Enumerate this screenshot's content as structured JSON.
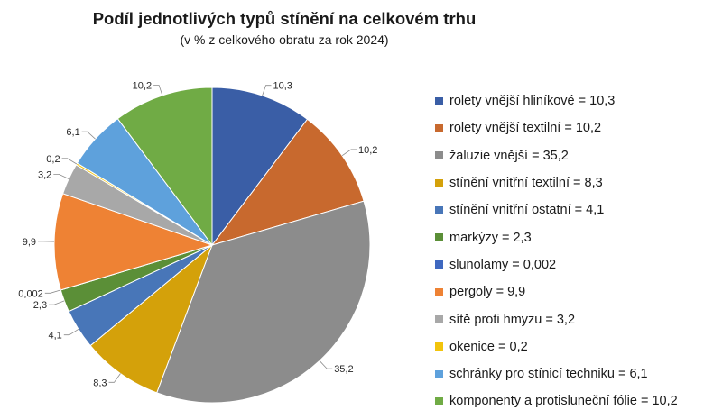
{
  "chart_data": {
    "type": "pie",
    "title": "Podíl jednotlivých typů stínění na celkovém trhu",
    "subtitle": "(v % z celkového obratu za rok 2024)",
    "legend_position": "right",
    "slices": [
      {
        "name": "rolety vnější hliníkové",
        "value": 10.3,
        "label": "10,3",
        "legend": "rolety vnější hliníkové = 10,3",
        "color": "#3a5ea6"
      },
      {
        "name": "rolety vnější textilní",
        "value": 10.2,
        "label": "10,2",
        "legend": "rolety vnější textilní = 10,2",
        "color": "#c8692e"
      },
      {
        "name": "žaluzie vnější",
        "value": 35.2,
        "label": "35,2",
        "legend": "žaluzie vnější = 35,2",
        "color": "#8c8c8c"
      },
      {
        "name": "stínění vnitřní textilní",
        "value": 8.3,
        "label": "8,3",
        "legend": "stínění vnitřní textilní = 8,3",
        "color": "#d4a10a"
      },
      {
        "name": "stínění vnitřní ostatní",
        "value": 4.1,
        "label": "4,1",
        "legend": "stínění vnitřní ostatní = 4,1",
        "color": "#4876b8"
      },
      {
        "name": "markýzy",
        "value": 2.3,
        "label": "2,3",
        "legend": "markýzy = 2,3",
        "color": "#5b8f37"
      },
      {
        "name": "slunolamy",
        "value": 0.002,
        "label": "0,002",
        "legend": "slunolamy = 0,002",
        "color": "#3f68c0"
      },
      {
        "name": "pergoly",
        "value": 9.9,
        "label": "9,9",
        "legend": "pergoly = 9,9",
        "color": "#ee8234"
      },
      {
        "name": "sítě proti hmyzu",
        "value": 3.2,
        "label": "3,2",
        "legend": "sítě proti hmyzu = 3,2",
        "color": "#a8a8a8"
      },
      {
        "name": "okenice",
        "value": 0.2,
        "label": "0,2",
        "legend": "okenice = 0,2",
        "color": "#f2c40c"
      },
      {
        "name": "schránky pro stínicí techniku",
        "value": 6.1,
        "label": "6,1",
        "legend": "schránky pro stínicí techniku = 6,1",
        "color": "#5ea1dc"
      },
      {
        "name": "komponenty a protisluneční fólie",
        "value": 10.2,
        "label": "10,2",
        "legend": "komponenty a protisluneční fólie = 10,2",
        "color": "#70ab45"
      }
    ]
  }
}
